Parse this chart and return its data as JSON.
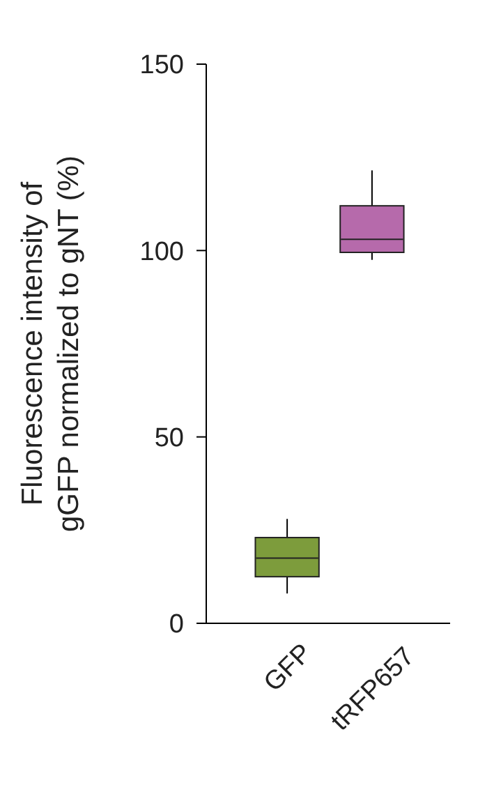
{
  "chart_data": {
    "type": "box",
    "ylabel": "Fluorescence intensity of\ngGFP normalized to gNT (%)",
    "categories": [
      "GFP",
      "tRFP657"
    ],
    "colors": [
      "#7d9c3c",
      "#b66aab"
    ],
    "boxes": [
      {
        "low": 8,
        "q1": 12.5,
        "median": 17.5,
        "q3": 23,
        "high": 28
      },
      {
        "low": 97.5,
        "q1": 99.5,
        "median": 103,
        "q3": 112,
        "high": 121.5
      }
    ],
    "ylim": [
      0,
      150
    ],
    "yticks": [
      0,
      50,
      100,
      150
    ]
  }
}
